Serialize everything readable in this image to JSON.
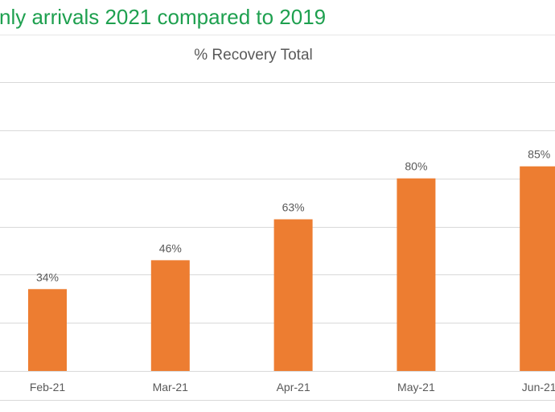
{
  "heading": "nly arrivals 2021 compared to 2019",
  "colors": {
    "heading": "#1ea04f",
    "bar": "#ed7d31",
    "grid": "#d9d9d9",
    "text": "#595959"
  },
  "chart_data": {
    "type": "bar",
    "title": "% Recovery Total",
    "categories": [
      "Feb-21",
      "Mar-21",
      "Apr-21",
      "May-21",
      "Jun-21"
    ],
    "values": [
      34,
      46,
      63,
      80,
      85
    ],
    "data_labels": [
      "34%",
      "46%",
      "63%",
      "80%",
      "85%"
    ],
    "ylim": [
      0,
      120
    ],
    "gridlines": [
      0,
      20,
      40,
      60,
      80,
      100,
      120
    ],
    "grid": true,
    "legend": "none"
  }
}
